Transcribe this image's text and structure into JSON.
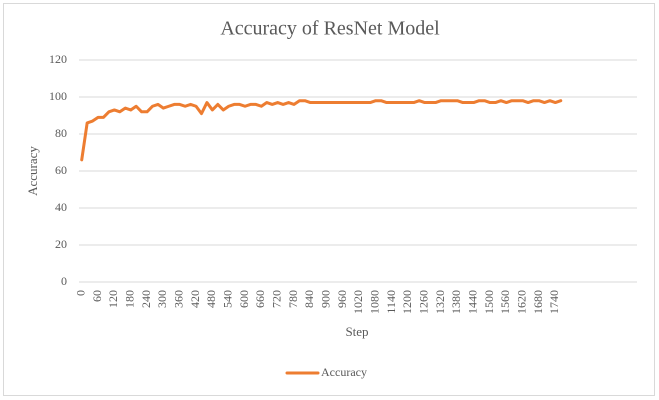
{
  "chart_data": {
    "type": "line",
    "title": "Accuracy of ResNet Model",
    "x_label": "Step",
    "y_label": "Accuracy",
    "x": [
      0,
      20,
      40,
      60,
      80,
      100,
      120,
      140,
      160,
      180,
      200,
      220,
      240,
      260,
      280,
      300,
      320,
      340,
      360,
      380,
      400,
      420,
      440,
      460,
      480,
      500,
      520,
      540,
      560,
      580,
      600,
      620,
      640,
      660,
      680,
      700,
      720,
      740,
      760,
      780,
      800,
      820,
      840,
      860,
      880,
      900,
      920,
      940,
      960,
      980,
      1000,
      1020,
      1040,
      1060,
      1080,
      1100,
      1120,
      1140,
      1160,
      1180,
      1200,
      1220,
      1240,
      1260,
      1280,
      1300,
      1320,
      1340,
      1360,
      1380,
      1400,
      1420,
      1440,
      1460,
      1480,
      1500,
      1520,
      1540,
      1560,
      1580,
      1600,
      1620,
      1640,
      1660,
      1680,
      1700,
      1720,
      1740,
      1760
    ],
    "series": [
      {
        "name": "Accuracy",
        "color": "#ed7d31",
        "values": [
          66,
          86,
          87,
          89,
          89,
          92,
          93,
          92,
          94,
          93,
          95,
          92,
          92,
          95,
          96,
          94,
          95,
          96,
          96,
          95,
          96,
          95,
          91,
          97,
          93,
          96,
          93,
          95,
          96,
          96,
          95,
          96,
          96,
          95,
          97,
          96,
          97,
          96,
          97,
          96,
          98,
          98,
          97,
          97,
          97,
          97,
          97,
          97,
          97,
          97,
          97,
          97,
          97,
          97,
          98,
          98,
          97,
          97,
          97,
          97,
          97,
          97,
          98,
          97,
          97,
          97,
          98,
          98,
          98,
          98,
          97,
          97,
          97,
          98,
          98,
          97,
          97,
          98,
          97,
          98,
          98,
          98,
          97,
          98,
          98,
          97,
          98,
          97,
          98
        ]
      }
    ],
    "xlim": [
      -10,
      2040
    ],
    "xticks": [
      0,
      60,
      120,
      180,
      240,
      300,
      360,
      420,
      480,
      540,
      600,
      660,
      720,
      780,
      840,
      900,
      960,
      1020,
      1080,
      1140,
      1200,
      1260,
      1320,
      1380,
      1440,
      1500,
      1560,
      1620,
      1680,
      1740
    ],
    "ylim": [
      0,
      120
    ],
    "yticks": [
      0,
      20,
      40,
      60,
      80,
      100,
      120
    ],
    "grid": true,
    "legend": "bottom"
  }
}
